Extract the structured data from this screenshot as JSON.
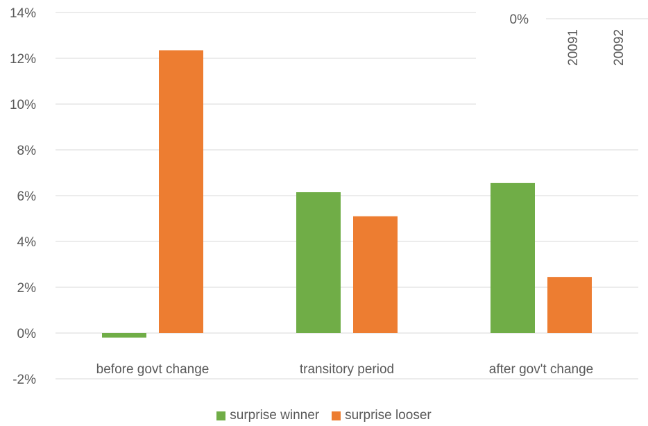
{
  "chart_data": {
    "type": "bar",
    "categories": [
      "before govt change",
      "transitory period",
      "after gov't change"
    ],
    "series": [
      {
        "name": "surprise winner",
        "color": "#70ad47",
        "values": [
          -0.2,
          6.15,
          6.55
        ]
      },
      {
        "name": "surprise looser",
        "color": "#ed7d31",
        "values": [
          12.35,
          5.1,
          2.45
        ]
      }
    ],
    "ylim": [
      -2,
      14
    ],
    "yticks": [
      -2,
      0,
      2,
      4,
      6,
      8,
      10,
      12,
      14
    ],
    "ytick_labels": [
      "-2%",
      "0%",
      "2%",
      "4%",
      "6%",
      "8%",
      "10%",
      "12%",
      "14%"
    ],
    "grid": true,
    "legend_position": "bottom",
    "inset": {
      "zero_label": "0%",
      "x_labels": [
        "20091",
        "20092"
      ]
    }
  }
}
